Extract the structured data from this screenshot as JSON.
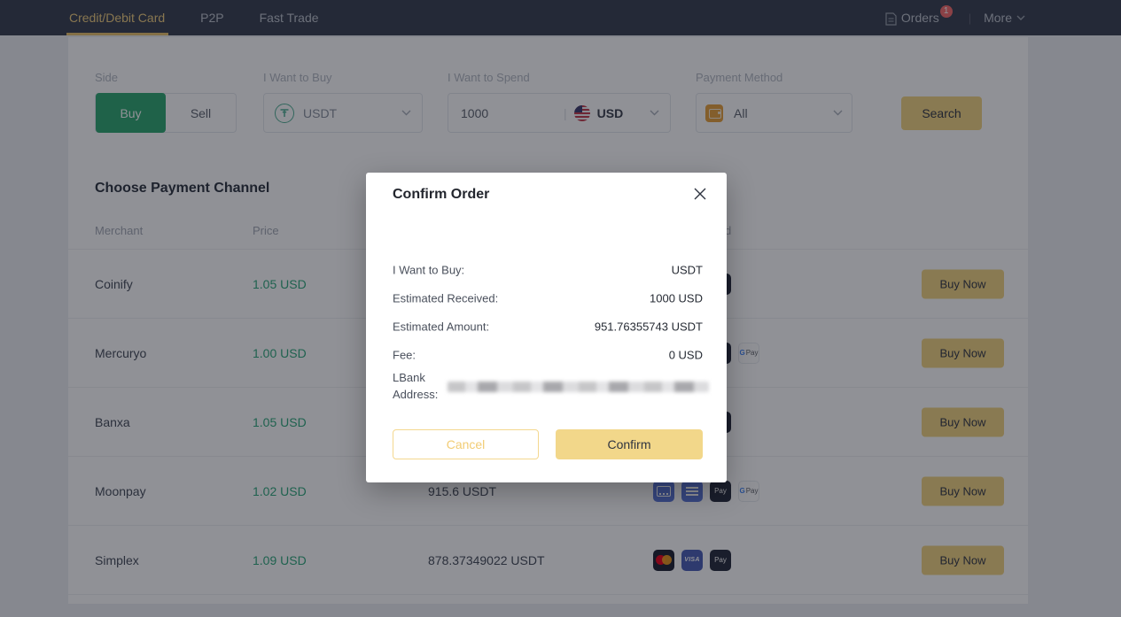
{
  "nav": {
    "tabs": [
      {
        "label": "Credit/Debit Card",
        "active": true
      },
      {
        "label": "P2P",
        "active": false
      },
      {
        "label": "Fast Trade",
        "active": false
      }
    ],
    "orders_label": "Orders",
    "orders_badge": "1",
    "divider": "|",
    "more_label": "More"
  },
  "filters": {
    "side": {
      "label": "Side",
      "buy": "Buy",
      "sell": "Sell",
      "selected": "Buy"
    },
    "want_buy": {
      "label": "I Want to Buy",
      "value": "USDT",
      "icon": "tether-icon"
    },
    "want_spend": {
      "label": "I Want to Spend",
      "value": "1000",
      "currency": "USD",
      "icon": "us-flag-icon"
    },
    "payment_method": {
      "label": "Payment Method",
      "value": "All",
      "icon": "wallet-icon"
    },
    "search_label": "Search"
  },
  "section_title": "Choose Payment Channel",
  "table": {
    "headers": [
      "Merchant",
      "Price",
      "",
      "Payment Method"
    ],
    "buy_now_label": "Buy Now",
    "rows": [
      {
        "merchant": "Coinify",
        "price": "1.05 USD",
        "estimated": "",
        "icons": [
          "mastercard",
          "visa",
          "apple-pay"
        ]
      },
      {
        "merchant": "Mercuryo",
        "price": "1.00 USD",
        "estimated": "",
        "icons": [
          "card-front",
          "card-back",
          "apple-pay",
          "gpay"
        ]
      },
      {
        "merchant": "Banxa",
        "price": "1.05 USD",
        "estimated": "",
        "icons": [
          "mastercard",
          "visa",
          "apple-pay"
        ]
      },
      {
        "merchant": "Moonpay",
        "price": "1.02 USD",
        "estimated": "915.6 USDT",
        "icons": [
          "card-front",
          "card-back",
          "apple-pay",
          "gpay"
        ]
      },
      {
        "merchant": "Simplex",
        "price": "1.09 USD",
        "estimated": "878.37349022 USDT",
        "icons": [
          "mastercard",
          "visa",
          "apple-pay"
        ]
      }
    ]
  },
  "modal": {
    "title": "Confirm Order",
    "rows": [
      {
        "label": "I Want to Buy:",
        "value": "USDT"
      },
      {
        "label": "Estimated Received:",
        "value": "1000 USD"
      },
      {
        "label": "Estimated Amount:",
        "value": "951.76355743 USDT"
      },
      {
        "label": "Fee:",
        "value": "0 USD"
      }
    ],
    "address_label": "LBank Address:",
    "cancel_label": "Cancel",
    "confirm_label": "Confirm"
  },
  "colors": {
    "accent_gold": "#F3D481",
    "nav_active_gold": "#F0CE7E",
    "buy_green": "#2FA971",
    "price_green": "#2FA97C",
    "badge_red": "#F56C6C",
    "nav_bg": "#394050",
    "tether_green": "#50AF95",
    "wallet_orange": "#E8A23B"
  }
}
